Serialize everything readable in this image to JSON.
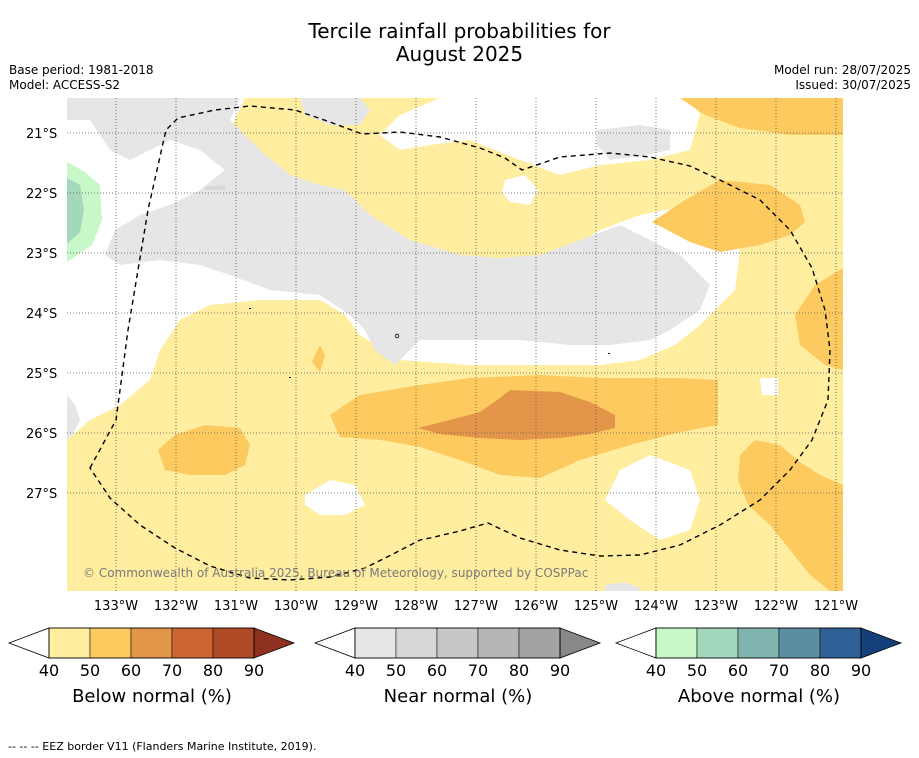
{
  "title_line1": "Tercile rainfall probabilities for",
  "title_line2": "August 2025",
  "base_period": "Base period: 1981-2018",
  "model": "Model: ACCESS-S2",
  "model_run": "Model run: 28/07/2025",
  "issued": "Issued: 30/07/2025",
  "copyright": "© Commonwealth of Australia 2025, Bureau of Meteorology, supported by COSPPac",
  "lat_labels": [
    "21°S",
    "22°S",
    "23°S",
    "24°S",
    "25°S",
    "26°S",
    "27°S"
  ],
  "lon_labels": [
    "133°W",
    "132°W",
    "131°W",
    "130°W",
    "129°W",
    "128°W",
    "127°W",
    "126°W",
    "125°W",
    "124°W",
    "123°W",
    "122°W",
    "121°W"
  ],
  "colorbars": [
    {
      "name": "Below normal (%)",
      "ticks": [
        "40",
        "50",
        "60",
        "70",
        "80",
        "90"
      ],
      "colors": [
        "#ffeda0",
        "#fdca5f",
        "#e3964a",
        "#cc6533",
        "#b04a27",
        "#8f3120"
      ]
    },
    {
      "name": "Near normal (%)",
      "ticks": [
        "40",
        "50",
        "60",
        "70",
        "80",
        "90"
      ],
      "colors": [
        "#e6e6e6",
        "#d7d7d7",
        "#c7c7c7",
        "#b6b6b6",
        "#a3a3a3",
        "#888888"
      ]
    },
    {
      "name": "Above normal (%)",
      "ticks": [
        "40",
        "50",
        "60",
        "70",
        "80",
        "90"
      ],
      "colors": [
        "#c8f7c8",
        "#a4d8bd",
        "#82b4b0",
        "#5a8ea0",
        "#306196",
        "#153f79"
      ]
    }
  ],
  "footnote": "--  --  -- EEZ border V11 (Flanders Marine Institute, 2019)."
}
